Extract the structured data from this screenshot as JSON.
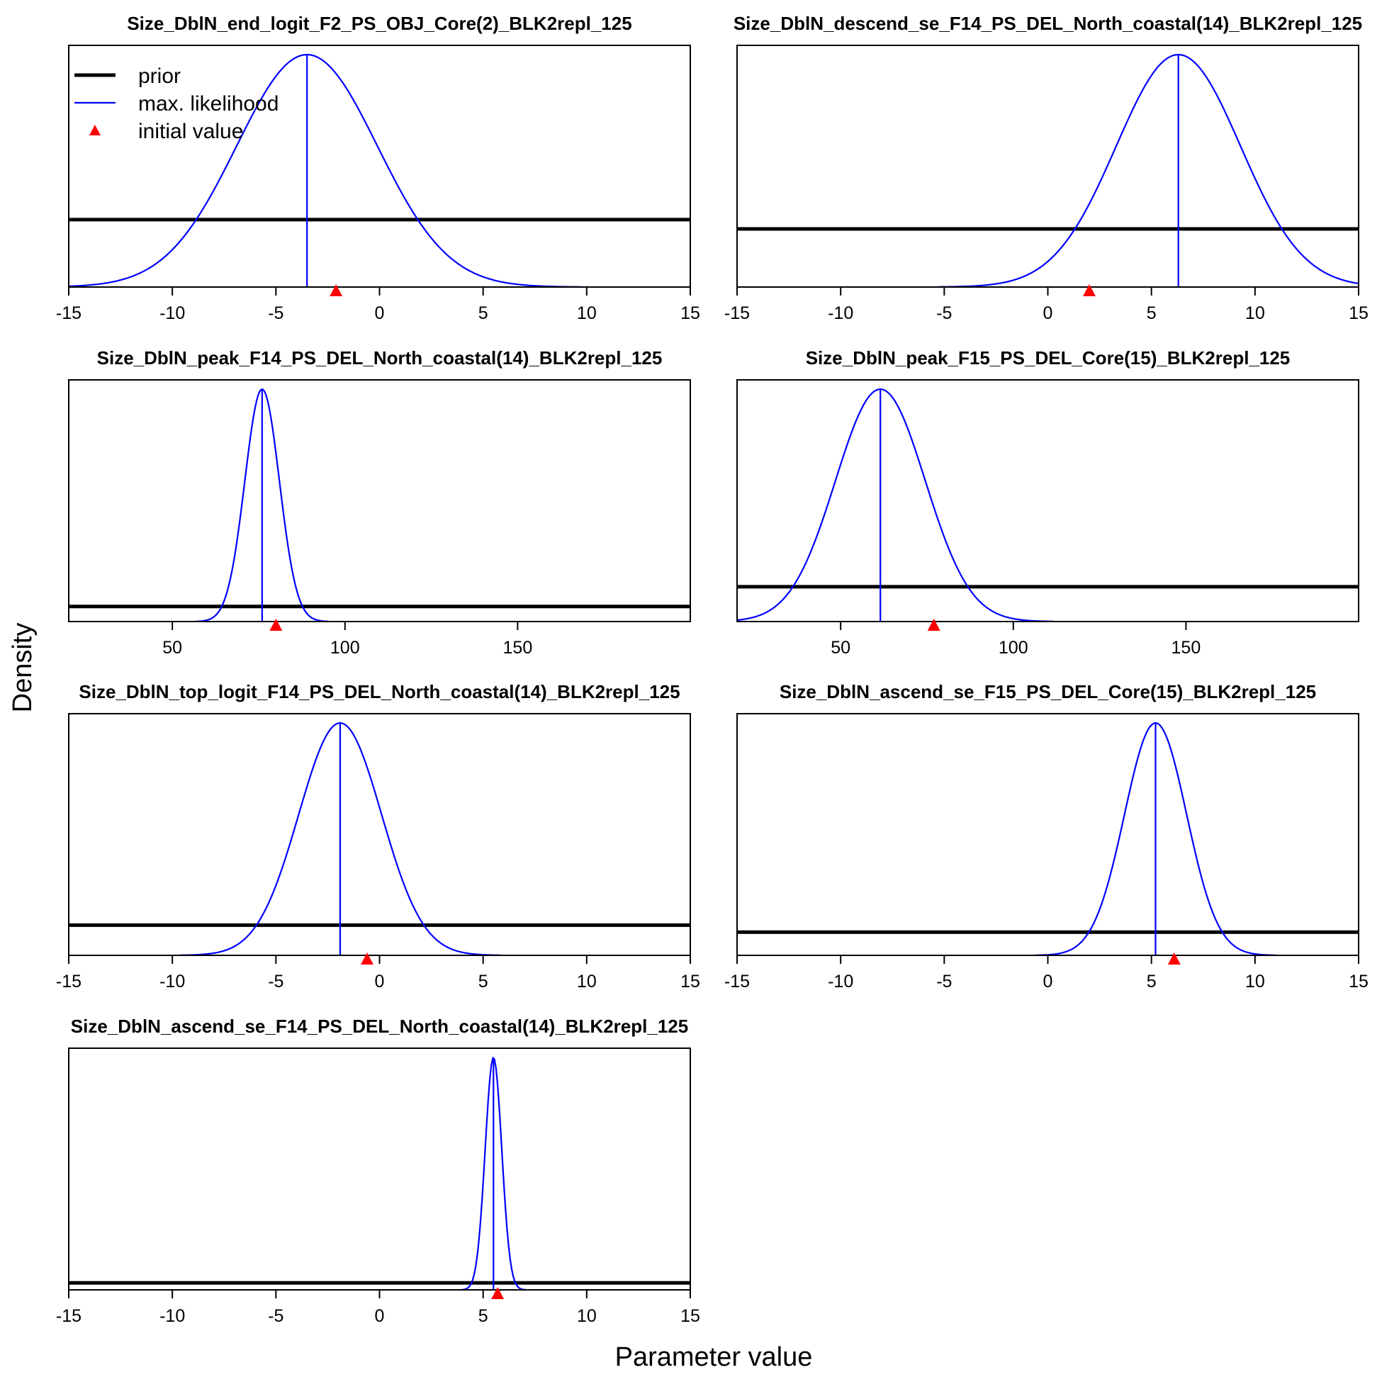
{
  "figure": {
    "ylabel": "Density",
    "xlabel": "Parameter value"
  },
  "legend": {
    "prior_label": "prior",
    "mle_label": "max. likelihood",
    "init_label": "initial value"
  },
  "colors": {
    "prior": "#000000",
    "mle": "#0000ff",
    "initial": "#ff0000"
  },
  "chart_data": [
    {
      "type": "line",
      "title": "Size_DblN_end_logit_F2_PS_OBJ_Core(2)_BLK2repl_125",
      "xlim": [
        -15,
        15
      ],
      "xticks": [
        -15,
        -10,
        -5,
        0,
        5,
        10,
        15
      ],
      "mle": -3.5,
      "sd": 3.4,
      "prior_level": 0.29,
      "initial": -2.1,
      "legend": true
    },
    {
      "type": "line",
      "title": "Size_DblN_descend_se_F14_PS_DEL_North_coastal(14)_BLK2repl_125",
      "xlim": [
        -15,
        15
      ],
      "xticks": [
        -15,
        -10,
        -5,
        0,
        5,
        10,
        15
      ],
      "mle": 6.3,
      "sd": 3.0,
      "prior_level": 0.25,
      "initial": 2.0,
      "legend": false
    },
    {
      "type": "line",
      "title": "Size_DblN_peak_F14_PS_DEL_North_coastal(14)_BLK2repl_125",
      "xlim": [
        20,
        200
      ],
      "xticks": [
        50,
        100,
        150
      ],
      "mle": 76,
      "sd": 5,
      "prior_level": 0.065,
      "initial": 80,
      "legend": false
    },
    {
      "type": "line",
      "title": "Size_DblN_peak_F15_PS_DEL_Core(15)_BLK2repl_125",
      "xlim": [
        20,
        200
      ],
      "xticks": [
        50,
        100,
        150
      ],
      "mle": 61.5,
      "sd": 13,
      "prior_level": 0.15,
      "initial": 77,
      "legend": false
    },
    {
      "type": "line",
      "title": "Size_DblN_top_logit_F14_PS_DEL_North_coastal(14)_BLK2repl_125",
      "xlim": [
        -15,
        15
      ],
      "xticks": [
        -15,
        -10,
        -5,
        0,
        5,
        10,
        15
      ],
      "mle": -1.9,
      "sd": 2.0,
      "prior_level": 0.13,
      "initial": -0.6,
      "legend": false
    },
    {
      "type": "line",
      "title": "Size_DblN_ascend_se_F15_PS_DEL_Core(15)_BLK2repl_125",
      "xlim": [
        -15,
        15
      ],
      "xticks": [
        -15,
        -10,
        -5,
        0,
        5,
        10,
        15
      ],
      "mle": 5.2,
      "sd": 1.5,
      "prior_level": 0.1,
      "initial": 6.1,
      "legend": false
    },
    {
      "type": "line",
      "title": "Size_DblN_ascend_se_F14_PS_DEL_North_coastal(14)_BLK2repl_125",
      "xlim": [
        -15,
        15
      ],
      "xticks": [
        -15,
        -10,
        -5,
        0,
        5,
        10,
        15
      ],
      "mle": 5.5,
      "sd": 0.4,
      "prior_level": 0.03,
      "initial": 5.7,
      "legend": false
    }
  ]
}
